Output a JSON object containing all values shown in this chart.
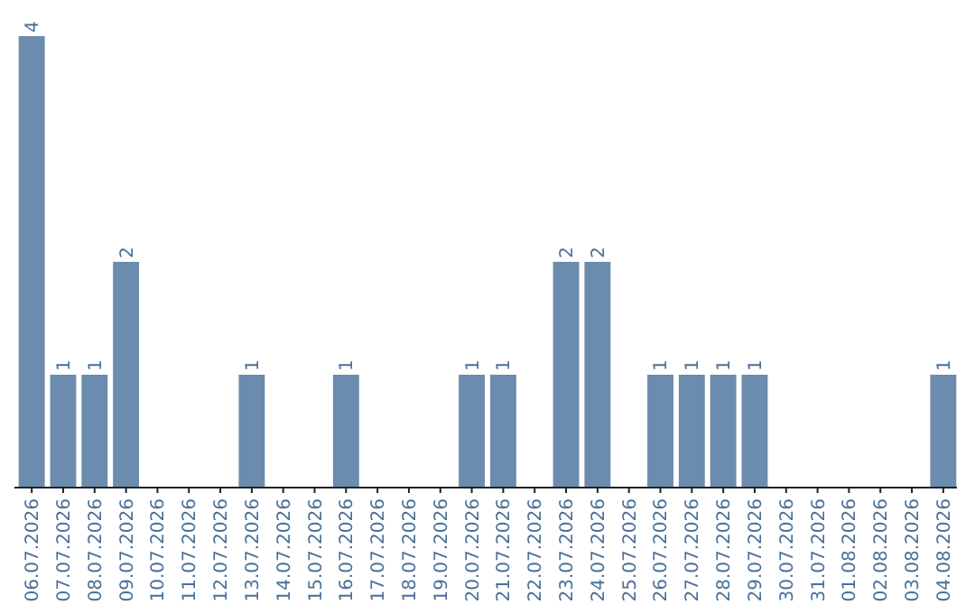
{
  "chart_data": {
    "type": "bar",
    "categories": [
      "06.07.2026",
      "07.07.2026",
      "08.07.2026",
      "09.07.2026",
      "10.07.2026",
      "11.07.2026",
      "12.07.2026",
      "13.07.2026",
      "14.07.2026",
      "15.07.2026",
      "16.07.2026",
      "17.07.2026",
      "18.07.2026",
      "19.07.2026",
      "20.07.2026",
      "21.07.2026",
      "22.07.2026",
      "23.07.2026",
      "24.07.2026",
      "25.07.2026",
      "26.07.2026",
      "27.07.2026",
      "28.07.2026",
      "29.07.2026",
      "30.07.2026",
      "31.07.2026",
      "01.08.2026",
      "02.08.2026",
      "03.08.2026",
      "04.08.2026"
    ],
    "values": [
      4,
      1,
      1,
      2,
      0,
      0,
      0,
      1,
      0,
      0,
      1,
      0,
      0,
      0,
      1,
      1,
      0,
      2,
      2,
      0,
      1,
      1,
      1,
      1,
      0,
      0,
      0,
      0,
      0,
      1
    ],
    "value_labels": [
      "4",
      "1",
      "1",
      "2",
      null,
      null,
      null,
      "1",
      null,
      null,
      "1",
      null,
      null,
      null,
      "1",
      "1",
      null,
      "2",
      "2",
      null,
      "1",
      "1",
      "1",
      "1",
      null,
      null,
      null,
      null,
      null,
      "1"
    ],
    "color": "#6b8cae",
    "tick_labels": "x",
    "grid": false
  }
}
